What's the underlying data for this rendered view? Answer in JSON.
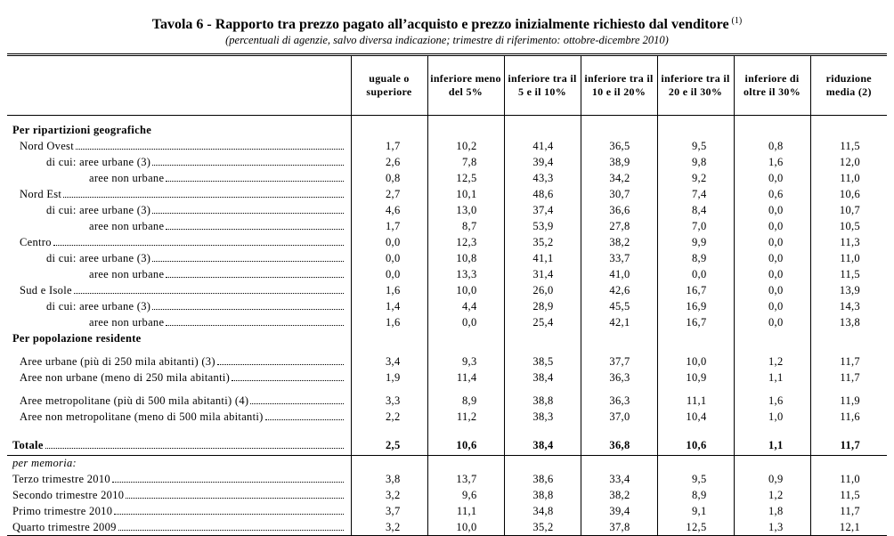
{
  "title": "Tavola 6 - Rapporto tra prezzo pagato all’acquisto e prezzo inizialmente richiesto dal venditore",
  "title_note": "(1)",
  "subtitle": "(percentuali di agenzie, salvo diversa indicazione; trimestre di riferimento: ottobre-dicembre 2010)",
  "table": {
    "columns": [
      "uguale o superiore",
      "inferiore meno del 5%",
      "inferiore tra il 5 e il 10%",
      "inferiore tra il 10 e il 20%",
      "inferiore tra il 20 e il 30%",
      "inferiore di oltre il 30%",
      "riduzione media (2)"
    ],
    "sections": [
      {
        "heading": "Per ripartizioni geografiche",
        "groups": [
          [
            {
              "label": "Nord Ovest",
              "values": [
                "1,7",
                "10,2",
                "41,4",
                "36,5",
                "9,5",
                "0,8",
                "11,5"
              ],
              "detail": [
                {
                  "label": "di cui: aree urbane (3)",
                  "values": [
                    "2,6",
                    "7,8",
                    "39,4",
                    "38,9",
                    "9,8",
                    "1,6",
                    "12,0"
                  ]
                },
                {
                  "label": "aree non urbane",
                  "values": [
                    "0,8",
                    "12,5",
                    "43,3",
                    "34,2",
                    "9,2",
                    "0,0",
                    "11,0"
                  ]
                }
              ]
            },
            {
              "label": "Nord Est",
              "values": [
                "2,7",
                "10,1",
                "48,6",
                "30,7",
                "7,4",
                "0,6",
                "10,6"
              ],
              "detail": [
                {
                  "label": "di cui: aree urbane (3)",
                  "values": [
                    "4,6",
                    "13,0",
                    "37,4",
                    "36,6",
                    "8,4",
                    "0,0",
                    "10,7"
                  ]
                },
                {
                  "label": "aree non urbane",
                  "values": [
                    "1,7",
                    "8,7",
                    "53,9",
                    "27,8",
                    "7,0",
                    "0,0",
                    "10,5"
                  ]
                }
              ]
            },
            {
              "label": "Centro",
              "values": [
                "0,0",
                "12,3",
                "35,2",
                "38,2",
                "9,9",
                "0,0",
                "11,3"
              ],
              "detail": [
                {
                  "label": "di cui: aree urbane (3)",
                  "values": [
                    "0,0",
                    "10,8",
                    "41,1",
                    "33,7",
                    "8,9",
                    "0,0",
                    "11,0"
                  ]
                },
                {
                  "label": "aree non urbane",
                  "values": [
                    "0,0",
                    "13,3",
                    "31,4",
                    "41,0",
                    "0,0",
                    "0,0",
                    "11,5"
                  ]
                }
              ]
            },
            {
              "label": "Sud e Isole",
              "values": [
                "1,6",
                "10,0",
                "26,0",
                "42,6",
                "16,7",
                "0,0",
                "13,9"
              ],
              "detail": [
                {
                  "label": "di cui: aree urbane (3)",
                  "values": [
                    "1,4",
                    "4,4",
                    "28,9",
                    "45,5",
                    "16,9",
                    "0,0",
                    "14,3"
                  ]
                },
                {
                  "label": "aree non urbane",
                  "values": [
                    "1,6",
                    "0,0",
                    "25,4",
                    "42,1",
                    "16,7",
                    "0,0",
                    "13,8"
                  ]
                }
              ]
            }
          ]
        ]
      },
      {
        "heading": "Per popolazione residente",
        "groups": [
          [
            {
              "label": "Aree urbane (più di 250 mila abitanti) (3)",
              "values": [
                "3,4",
                "9,3",
                "38,5",
                "37,7",
                "10,0",
                "1,2",
                "11,7"
              ]
            },
            {
              "label": "Aree non urbane (meno di 250 mila abitanti)",
              "values": [
                "1,9",
                "11,4",
                "38,4",
                "36,3",
                "10,9",
                "1,1",
                "11,7"
              ]
            }
          ],
          [
            {
              "label": "Aree metropolitane (più di 500 mila abitanti) (4)",
              "values": [
                "3,3",
                "8,9",
                "38,8",
                "36,3",
                "11,1",
                "1,6",
                "11,9"
              ]
            },
            {
              "label": "Aree non metropolitane (meno di 500 mila abitanti)",
              "values": [
                "2,2",
                "11,2",
                "38,3",
                "37,0",
                "10,4",
                "1,0",
                "11,6"
              ]
            }
          ]
        ]
      }
    ],
    "total": {
      "label": "Totale",
      "values": [
        "2,5",
        "10,6",
        "38,4",
        "36,8",
        "10,6",
        "1,1",
        "11,7"
      ]
    },
    "memo": {
      "heading": "per memoria:",
      "rows": [
        {
          "label": "Terzo trimestre 2010",
          "values": [
            "3,8",
            "13,7",
            "38,6",
            "33,4",
            "9,5",
            "0,9",
            "11,0"
          ]
        },
        {
          "label": "Secondo trimestre 2010",
          "values": [
            "3,2",
            "9,6",
            "38,8",
            "38,2",
            "8,9",
            "1,2",
            "11,5"
          ]
        },
        {
          "label": "Primo trimestre 2010",
          "values": [
            "3,7",
            "11,1",
            "34,8",
            "39,4",
            "9,1",
            "1,8",
            "11,7"
          ]
        },
        {
          "label": "Quarto trimestre 2009",
          "values": [
            "3,2",
            "10,0",
            "35,2",
            "37,8",
            "12,5",
            "1,3",
            "12,1"
          ]
        }
      ]
    }
  }
}
